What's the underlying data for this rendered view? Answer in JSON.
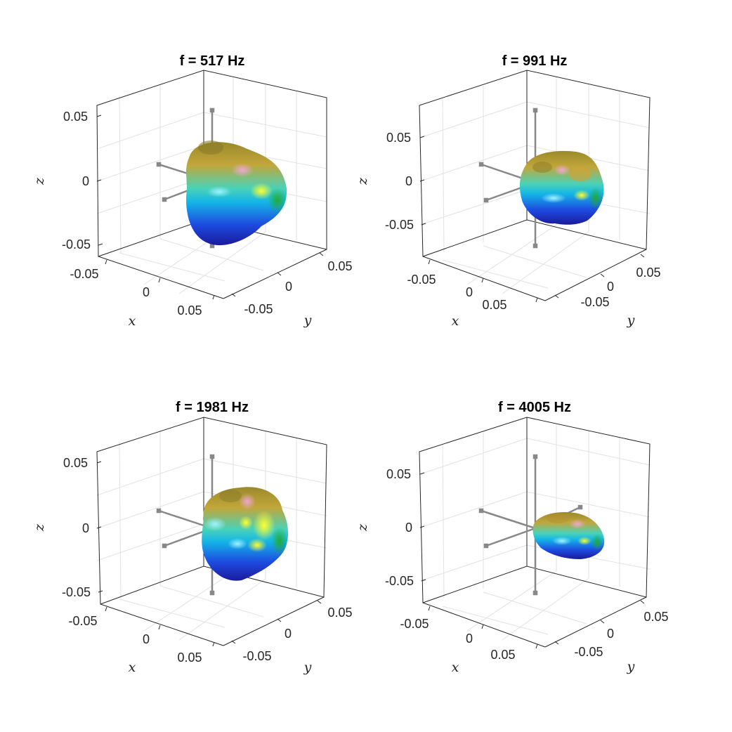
{
  "chart_data": [
    {
      "type": "surface3d",
      "title": "f = 517 Hz",
      "xlabel": "x",
      "ylabel": "y",
      "zlabel": "z",
      "xticks": [
        "-0.05",
        "0",
        "0.05"
      ],
      "yticks": [
        "-0.05",
        "0",
        "0.05"
      ],
      "zticks": [
        "-0.05",
        "0",
        "0.05"
      ],
      "xlim": [
        -0.07,
        0.07
      ],
      "ylim": [
        -0.07,
        0.07
      ],
      "zlim": [
        -0.06,
        0.06
      ],
      "grid": true,
      "extent": {
        "xmin": -0.045,
        "xmax": 0.05,
        "ymin": -0.045,
        "ymax": 0.04,
        "zmin": -0.05,
        "zmax": 0.033
      }
    },
    {
      "type": "surface3d",
      "title": "f = 991 Hz",
      "xlabel": "x",
      "ylabel": "y",
      "zlabel": "z",
      "xticks": [
        "-0.05",
        "0",
        "0.05"
      ],
      "yticks": [
        "-0.05",
        "0",
        "0.05"
      ],
      "zticks": [
        "-0.05",
        "0",
        "0.05"
      ],
      "xlim": [
        -0.07,
        0.07
      ],
      "ylim": [
        -0.07,
        0.07
      ],
      "zlim": [
        -0.09,
        0.09
      ],
      "grid": true,
      "extent": {
        "xmin": -0.045,
        "xmax": 0.05,
        "ymin": -0.045,
        "ymax": 0.04,
        "zmin": -0.05,
        "zmax": 0.035
      }
    },
    {
      "type": "surface3d",
      "title": "f = 1981 Hz",
      "xlabel": "x",
      "ylabel": "y",
      "zlabel": "z",
      "xticks": [
        "-0.05",
        "0",
        "0.05"
      ],
      "yticks": [
        "-0.05",
        "0",
        "0.05"
      ],
      "zticks": [
        "-0.05",
        "0",
        "0.05"
      ],
      "xlim": [
        -0.07,
        0.07
      ],
      "ylim": [
        -0.07,
        0.07
      ],
      "zlim": [
        -0.06,
        0.06
      ],
      "grid": true,
      "extent": {
        "xmin": -0.045,
        "xmax": 0.05,
        "ymin": -0.045,
        "ymax": 0.04,
        "zmin": -0.045,
        "zmax": 0.03
      }
    },
    {
      "type": "surface3d",
      "title": "f = 4005 Hz",
      "xlabel": "x",
      "ylabel": "y",
      "zlabel": "z",
      "xticks": [
        "-0.05",
        "0",
        "0.05"
      ],
      "yticks": [
        "-0.05",
        "0",
        "0.05"
      ],
      "zticks": [
        "-0.05",
        "0",
        "0.05"
      ],
      "xlim": [
        -0.07,
        0.07
      ],
      "ylim": [
        -0.07,
        0.07
      ],
      "zlim": [
        -0.07,
        0.07
      ],
      "grid": true,
      "extent": {
        "xmin": -0.035,
        "xmax": 0.055,
        "ymin": -0.03,
        "ymax": 0.04,
        "zmin": -0.03,
        "zmax": 0.02
      }
    }
  ],
  "colors": {
    "axes": "#262626",
    "grid": "#e0e0e0",
    "ref_lines": "#888888",
    "surface_top": "#a89a2a",
    "surface_mid": "#22c4c8",
    "surface_bottom": "#1f2fd6",
    "highlight_yellow": "#f2f21a",
    "highlight_pink": "#e0a0c8",
    "highlight_green": "#2aa82a"
  }
}
